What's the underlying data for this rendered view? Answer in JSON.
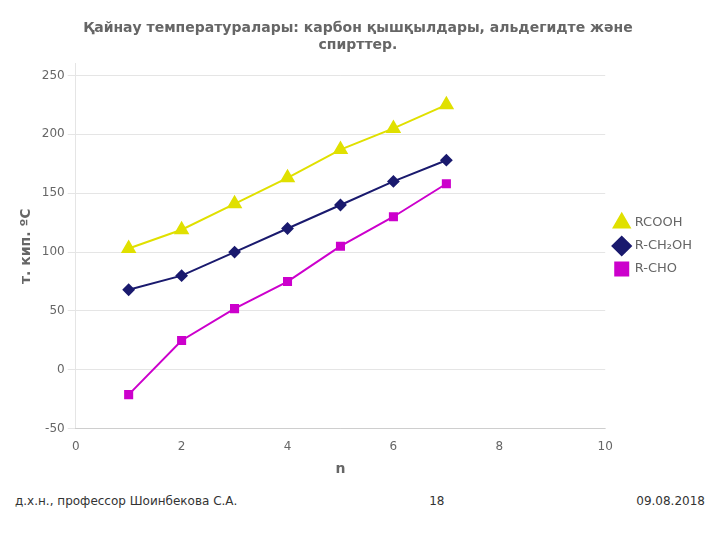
{
  "chart_data": {
    "type": "line",
    "title": "Қайнау температуралары: карбон қышқылдары, альдегидте және\nспирттер.",
    "x_label": "n",
    "y_label": "т. кип. ºC",
    "x": [
      1,
      2,
      3,
      4,
      5,
      6,
      7
    ],
    "series": [
      {
        "name": "RCOOH",
        "color": "#e0e000",
        "marker": "triangle",
        "values": [
          103,
          119,
          141,
          163,
          187,
          205,
          225
        ]
      },
      {
        "name": "R-CH₂OH",
        "color": "#1a1a6e",
        "marker": "diamond",
        "values": [
          68,
          80,
          100,
          120,
          140,
          160,
          178
        ]
      },
      {
        "name": "R-CHO",
        "color": "#cc00cc",
        "marker": "square",
        "values": [
          -21,
          25,
          52,
          75,
          105,
          130,
          158
        ]
      }
    ],
    "xlim": [
      0,
      10
    ],
    "xticks": [
      0,
      2,
      4,
      6,
      8,
      10
    ],
    "ylim": [
      -50,
      260
    ],
    "yticks": [
      -50,
      0,
      50,
      100,
      150,
      200,
      250
    ],
    "grid": "y",
    "legend": "right",
    "annotations": [
      "д.х.н., профессор Шоинбекова С.А.",
      "18",
      "09.08.2018"
    ]
  }
}
